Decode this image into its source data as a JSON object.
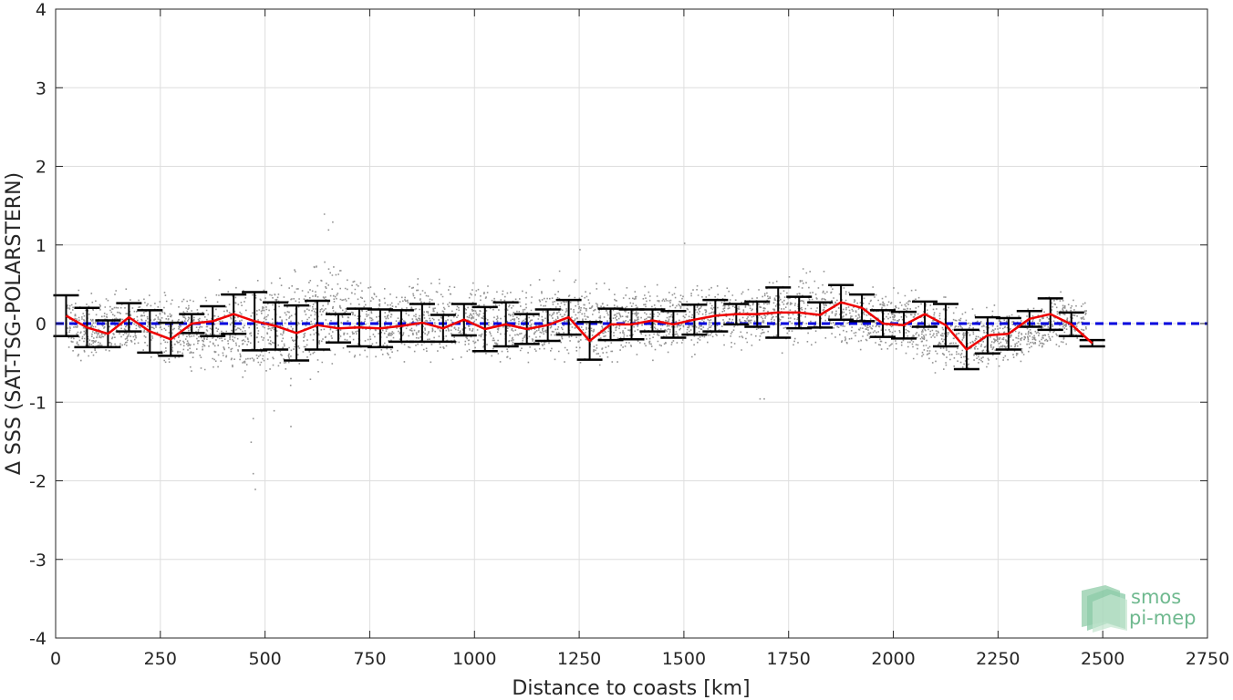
{
  "chart_data": {
    "type": "line",
    "xlabel": "Distance to coasts [km]",
    "ylabel": "Δ SSS (SAT-TSG-POLARSTERN)",
    "xlim": [
      0,
      2750
    ],
    "ylim": [
      -4,
      4
    ],
    "xticks": [
      0,
      250,
      500,
      750,
      1000,
      1250,
      1500,
      1750,
      2000,
      2250,
      2500,
      2750
    ],
    "yticks": [
      -4,
      -3,
      -2,
      -1,
      0,
      1,
      2,
      3,
      4
    ],
    "grid": true,
    "reference_line": {
      "y": 0,
      "color": "#0000dd",
      "style": "dashed"
    },
    "series": [
      {
        "style": "scatter",
        "color": "#808080",
        "description_points": "dense cloud of individual differences",
        "envelope": {
          "x": [
            25,
            100,
            200,
            300,
            400,
            450,
            500,
            550,
            600,
            650,
            700,
            800,
            900,
            1000,
            1100,
            1200,
            1300,
            1400,
            1500,
            1600,
            1700,
            1800,
            1900,
            2000,
            2100,
            2200,
            2300,
            2400,
            2460
          ],
          "lo": [
            -0.5,
            -0.6,
            -0.5,
            -0.7,
            -0.8,
            -0.9,
            -1.0,
            -1.0,
            -0.9,
            -0.8,
            -0.6,
            -0.6,
            -0.6,
            -0.6,
            -0.6,
            -0.6,
            -0.6,
            -0.5,
            -0.5,
            -0.4,
            -0.4,
            -0.4,
            -0.4,
            -0.5,
            -0.7,
            -0.7,
            -0.6,
            -0.4,
            -0.3
          ],
          "hi": [
            0.5,
            0.5,
            0.5,
            0.5,
            0.6,
            0.7,
            0.9,
            0.9,
            1.0,
            1.0,
            0.8,
            0.6,
            0.7,
            0.7,
            0.6,
            0.7,
            0.6,
            0.6,
            0.6,
            0.6,
            0.7,
            0.8,
            0.6,
            0.6,
            0.5,
            0.3,
            0.3,
            0.5,
            0.4
          ]
        },
        "outliers": [
          [
            470,
            -1.2
          ],
          [
            465,
            -1.5
          ],
          [
            470,
            -1.9
          ],
          [
            475,
            -2.1
          ],
          [
            520,
            -1.1
          ],
          [
            560,
            -1.3
          ],
          [
            640,
            1.4
          ],
          [
            660,
            1.3
          ],
          [
            650,
            1.2
          ],
          [
            1250,
            0.95
          ],
          [
            1500,
            1.03
          ],
          [
            1680,
            -0.95
          ],
          [
            1690,
            -0.95
          ]
        ]
      },
      {
        "style": "errorbar",
        "color": "#000000",
        "x": [
          25,
          75,
          125,
          175,
          225,
          275,
          325,
          375,
          425,
          475,
          525,
          575,
          625,
          675,
          725,
          775,
          825,
          875,
          925,
          975,
          1025,
          1075,
          1125,
          1175,
          1225,
          1275,
          1325,
          1375,
          1425,
          1475,
          1525,
          1575,
          1625,
          1675,
          1725,
          1775,
          1825,
          1875,
          1925,
          1975,
          2025,
          2075,
          2125,
          2175,
          2225,
          2275,
          2325,
          2375,
          2425,
          2475
        ],
        "mean": [
          0.1,
          -0.05,
          -0.13,
          0.08,
          -0.1,
          -0.2,
          0.0,
          0.03,
          0.12,
          0.03,
          -0.03,
          -0.12,
          -0.02,
          -0.06,
          -0.05,
          -0.06,
          -0.03,
          0.01,
          -0.06,
          0.05,
          -0.07,
          -0.01,
          -0.07,
          -0.02,
          0.08,
          -0.22,
          -0.01,
          -0.01,
          0.04,
          -0.01,
          0.05,
          0.1,
          0.12,
          0.12,
          0.14,
          0.14,
          0.11,
          0.27,
          0.2,
          0.0,
          -0.02,
          0.12,
          -0.02,
          -0.33,
          -0.15,
          -0.13,
          0.06,
          0.12,
          -0.01,
          -0.25
        ],
        "std": [
          0.26,
          0.25,
          0.17,
          0.18,
          0.27,
          0.21,
          0.12,
          0.19,
          0.25,
          0.37,
          0.3,
          0.35,
          0.31,
          0.18,
          0.24,
          0.24,
          0.2,
          0.24,
          0.17,
          0.2,
          0.28,
          0.28,
          0.19,
          0.2,
          0.22,
          0.24,
          0.2,
          0.19,
          0.14,
          0.17,
          0.19,
          0.2,
          0.13,
          0.16,
          0.32,
          0.2,
          0.16,
          0.22,
          0.17,
          0.17,
          0.17,
          0.16,
          0.27,
          0.25,
          0.23,
          0.2,
          0.1,
          0.2,
          0.15,
          0.04
        ]
      },
      {
        "style": "line",
        "color": "#ee0000",
        "x": [
          25,
          75,
          125,
          175,
          225,
          275,
          325,
          375,
          425,
          475,
          525,
          575,
          625,
          675,
          725,
          775,
          825,
          875,
          925,
          975,
          1025,
          1075,
          1125,
          1175,
          1225,
          1275,
          1325,
          1375,
          1425,
          1475,
          1525,
          1575,
          1625,
          1675,
          1725,
          1775,
          1825,
          1875,
          1925,
          1975,
          2025,
          2075,
          2125,
          2175,
          2225,
          2275,
          2325,
          2375,
          2425,
          2475
        ],
        "y": [
          0.1,
          -0.05,
          -0.13,
          0.08,
          -0.1,
          -0.2,
          0.0,
          0.03,
          0.12,
          0.03,
          -0.03,
          -0.12,
          -0.02,
          -0.06,
          -0.05,
          -0.06,
          -0.03,
          0.01,
          -0.06,
          0.05,
          -0.07,
          -0.01,
          -0.07,
          -0.02,
          0.08,
          -0.22,
          -0.01,
          -0.01,
          0.04,
          -0.01,
          0.05,
          0.1,
          0.12,
          0.12,
          0.14,
          0.14,
          0.11,
          0.27,
          0.2,
          0.0,
          -0.02,
          0.12,
          -0.02,
          -0.33,
          -0.15,
          -0.13,
          0.06,
          0.12,
          -0.01,
          -0.25
        ]
      }
    ]
  },
  "logo": {
    "line1": "smos",
    "line2": "pi-mep",
    "color": "#6fb98f"
  }
}
